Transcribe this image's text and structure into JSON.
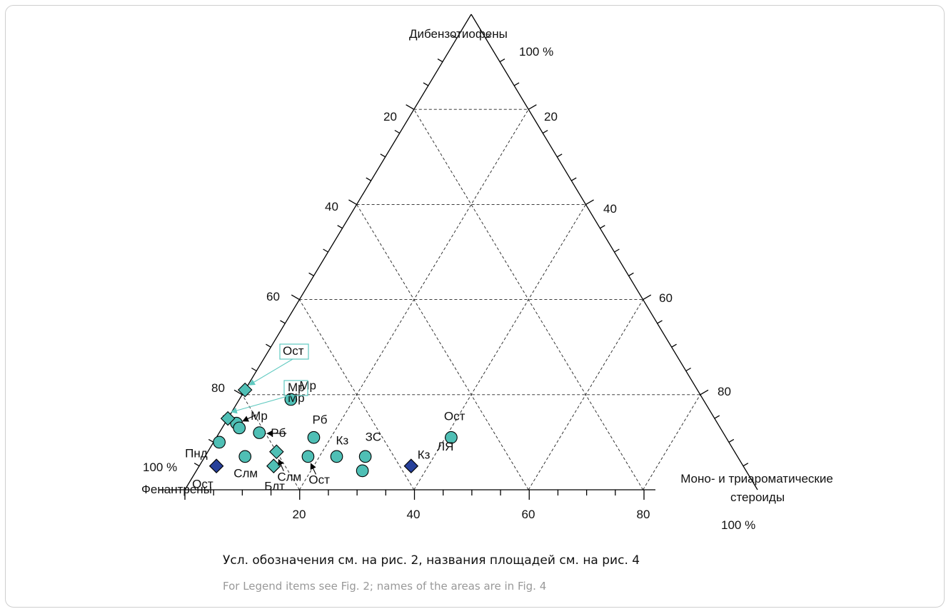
{
  "chart_data": {
    "type": "ternary",
    "axes": {
      "top": {
        "name": "Дибензотиофены",
        "full": "100 %"
      },
      "left": {
        "name": "Фенантрены",
        "full": "100 %"
      },
      "right": {
        "name_line1": "Моно- и триароматические",
        "name_line2": "стероиды",
        "full": "100 %"
      }
    },
    "tick_values": [
      "20",
      "40",
      "60",
      "80"
    ],
    "grid": true,
    "colors": {
      "circle": "#4fbfb5",
      "diamond_light": "#4fbfb5",
      "diamond_dark": "#26409a",
      "callout_box": "#5fc9c0",
      "callout_arrow": "#5fc9c0"
    },
    "points": [
      {
        "label": "Мр",
        "marker": "circle",
        "dbt": 19,
        "steroids": 9
      },
      {
        "label": "Мр",
        "marker": "circle",
        "dbt": 14,
        "steroids": 2
      },
      {
        "label": "Мр",
        "marker": "circle",
        "dbt": 13,
        "steroids": 3
      },
      {
        "label": "Рб",
        "marker": "circle",
        "dbt": 12,
        "steroids": 7
      },
      {
        "label": "Пнд",
        "marker": "circle",
        "dbt": 10,
        "steroids": 1
      },
      {
        "label": "Слм",
        "marker": "circle",
        "dbt": 7,
        "steroids": 7
      },
      {
        "label": "Рб",
        "marker": "circle",
        "dbt": 11,
        "steroids": 17
      },
      {
        "label": "Ост",
        "marker": "circle",
        "dbt": 7,
        "steroids": 18
      },
      {
        "label": "Кз",
        "marker": "circle",
        "dbt": 7,
        "steroids": 23
      },
      {
        "label": "ЗС",
        "marker": "circle",
        "dbt": 7,
        "steroids": 28
      },
      {
        "label": "ЛЯ",
        "marker": "circle",
        "dbt": 4,
        "steroids": 29
      },
      {
        "label": "Ост",
        "marker": "circle",
        "dbt": 11,
        "steroids": 41
      },
      {
        "label": "Ост",
        "marker": "diamond_light",
        "dbt": 21,
        "steroids": 0
      },
      {
        "label": "Мр",
        "marker": "diamond_light",
        "dbt": 15,
        "steroids": 0
      },
      {
        "label": "Слм",
        "marker": "diamond_light",
        "dbt": 8,
        "steroids": 12
      },
      {
        "label": "Блт",
        "marker": "diamond_light",
        "dbt": 5,
        "steroids": 13
      },
      {
        "label": "Ост",
        "marker": "diamond_dark",
        "dbt": 5,
        "steroids": 3
      },
      {
        "label": "Кз",
        "marker": "diamond_dark",
        "dbt": 5,
        "steroids": 37
      }
    ]
  },
  "caption": {
    "ru": "Усл. обозначения см. на рис. 2, названия площадей см. на рис. 4",
    "en": "For Legend items see Fig. 2; names of the areas are in Fig. 4"
  }
}
